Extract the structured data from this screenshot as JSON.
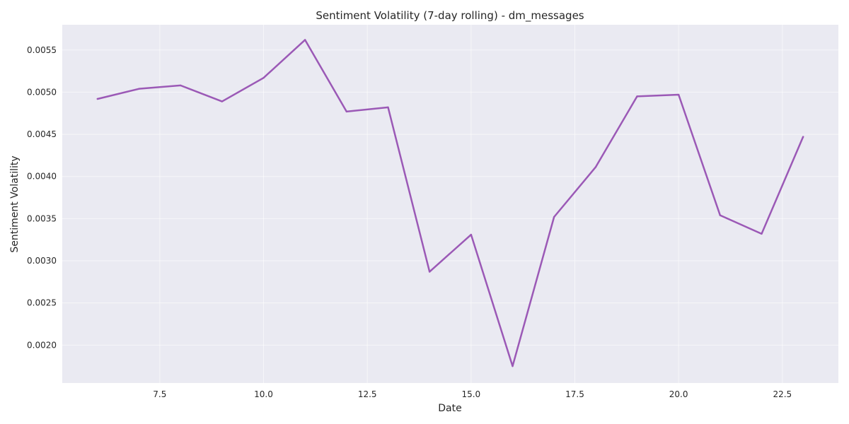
{
  "chart_data": {
    "type": "line",
    "title": "Sentiment Volatility (7-day rolling) - dm_messages",
    "xlabel": "Date",
    "ylabel": "Sentiment Volatility",
    "xlim": [
      5.15,
      23.85
    ],
    "ylim": [
      0.00155,
      0.0058
    ],
    "x_ticks": [
      7.5,
      10.0,
      12.5,
      15.0,
      17.5,
      20.0,
      22.5
    ],
    "x_tick_labels": [
      "7.5",
      "10.0",
      "12.5",
      "15.0",
      "17.5",
      "20.0",
      "22.5"
    ],
    "y_ticks": [
      0.002,
      0.0025,
      0.003,
      0.0035,
      0.004,
      0.0045,
      0.005,
      0.0055
    ],
    "y_tick_labels": [
      "0.0020",
      "0.0025",
      "0.0030",
      "0.0035",
      "0.0040",
      "0.0045",
      "0.0050",
      "0.0055"
    ],
    "grid": true,
    "legend": false,
    "series": [
      {
        "color": "#9b59b6",
        "x": [
          6,
          7,
          8,
          9,
          10,
          11,
          12,
          13,
          14,
          15,
          16,
          17,
          18,
          19,
          20,
          21,
          22,
          23
        ],
        "values": [
          0.00492,
          0.00504,
          0.00508,
          0.00489,
          0.00517,
          0.00562,
          0.00477,
          0.00482,
          0.00287,
          0.00331,
          0.00175,
          0.00352,
          0.00411,
          0.00495,
          0.00497,
          0.00354,
          0.00332,
          0.00447
        ]
      }
    ]
  },
  "colors": {
    "plot_background": "#eaeaf2",
    "grid": "#ffffff",
    "text": "#262626"
  }
}
